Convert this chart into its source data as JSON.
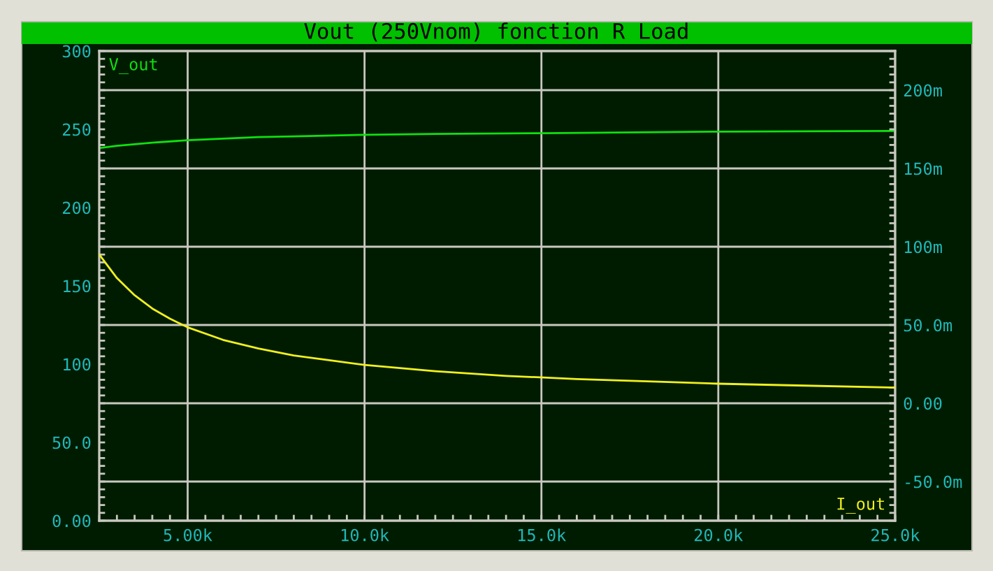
{
  "chart_data": {
    "type": "line",
    "title": "Vout (250Vnom) fonction R Load",
    "xlim": [
      2500,
      25000
    ],
    "xticks": [
      {
        "value": 5000,
        "label": "5.00k"
      },
      {
        "value": 10000,
        "label": "10.0k"
      },
      {
        "value": 15000,
        "label": "15.0k"
      },
      {
        "value": 20000,
        "label": "20.0k"
      },
      {
        "value": 25000,
        "label": "25.0k"
      }
    ],
    "ylim": [
      0,
      300
    ],
    "yticks": [
      {
        "value": 0,
        "label": "0.00"
      },
      {
        "value": 50,
        "label": "50.0"
      },
      100,
      150,
      200,
      250,
      300
    ],
    "y2lim": [
      -75,
      225
    ],
    "y2ticks": [
      {
        "value": -50,
        "label": "-50.0m"
      },
      {
        "value": 0,
        "label": "0.00"
      },
      {
        "value": 50,
        "label": "50.0m"
      },
      {
        "value": 100,
        "label": "100m"
      },
      {
        "value": 150,
        "label": "150m"
      },
      {
        "value": 200,
        "label": "200m"
      }
    ],
    "grid": true,
    "legend": false,
    "line_style": "solid",
    "marker": "none",
    "series": [
      {
        "name": "V_out",
        "color": "#10e010",
        "x": [
          2500,
          3000,
          4000,
          5000,
          6000,
          7000,
          8000,
          10000,
          12000,
          15000,
          20000,
          25000
        ],
        "values": [
          238,
          239.5,
          241.5,
          243,
          244,
          245,
          245.5,
          246.5,
          247,
          247.5,
          248.5,
          249
        ]
      },
      {
        "name": "I_out",
        "color": "#f0f020",
        "axis": "y2",
        "x": [
          2500,
          3000,
          3500,
          4000,
          4500,
          5000,
          6000,
          7000,
          8000,
          9000,
          10000,
          12000,
          14000,
          16000,
          18000,
          20000,
          22000,
          25000
        ],
        "values": [
          95,
          80,
          69,
          60.5,
          54,
          48.5,
          40.5,
          35,
          30.5,
          27.5,
          24.5,
          20.5,
          17.5,
          15.5,
          14,
          12.5,
          11.5,
          10
        ]
      }
    ]
  }
}
